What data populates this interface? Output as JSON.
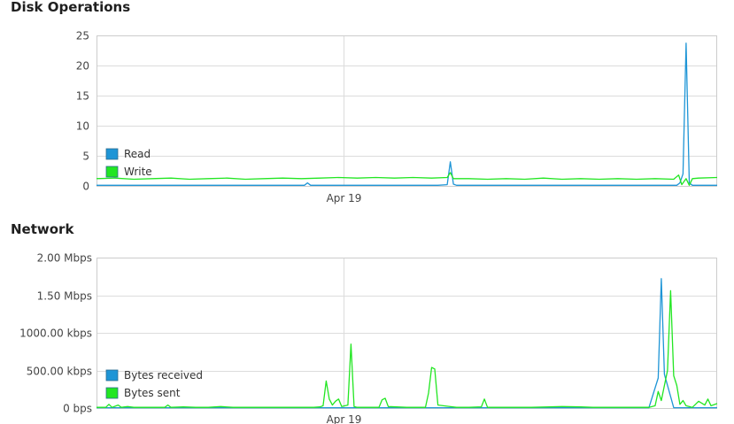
{
  "charts": [
    {
      "id": "disk",
      "panel_title": "Disk Operations",
      "chart_data": {
        "type": "line",
        "title": "Disk Operations",
        "xlabel": "",
        "ylabel": "",
        "x_range": [
          0,
          100
        ],
        "x_ticks": [
          {
            "x": 39.8,
            "label": "Apr 19"
          }
        ],
        "ylim": [
          0,
          25
        ],
        "y_ticks": [
          {
            "value": 0,
            "label": "0"
          },
          {
            "value": 5,
            "label": "5"
          },
          {
            "value": 10,
            "label": "10"
          },
          {
            "value": 15,
            "label": "15"
          },
          {
            "value": 20,
            "label": "20"
          },
          {
            "value": 25,
            "label": "25"
          }
        ],
        "grid": true,
        "legend_position": "bottom-left",
        "series": [
          {
            "name": "Read",
            "color": "#1e95d6",
            "x": [
              0,
              5,
              10,
              15,
              20,
              25,
              30,
              33.5,
              34,
              34.5,
              40,
              45,
              50,
              55,
              56.5,
              57,
              57.5,
              58,
              60,
              65,
              70,
              75,
              80,
              85,
              90,
              93.5,
              94,
              94.5,
              95,
              95.5,
              96,
              100
            ],
            "y": [
              0.1,
              0.1,
              0.1,
              0.1,
              0.1,
              0.1,
              0.1,
              0.1,
              0.5,
              0.1,
              0.1,
              0.1,
              0.1,
              0.1,
              0.2,
              4.0,
              0.3,
              0.1,
              0.1,
              0.1,
              0.1,
              0.1,
              0.1,
              0.1,
              0.1,
              0.1,
              0.5,
              2.0,
              23.7,
              0.5,
              0.1,
              0.1
            ]
          },
          {
            "name": "Write",
            "color": "#22e622",
            "x": [
              0,
              3,
              6,
              9,
              12,
              15,
              18,
              21,
              24,
              27,
              30,
              33,
              36,
              39,
              42,
              45,
              48,
              51,
              54,
              56.5,
              57,
              57.5,
              60,
              63,
              66,
              69,
              72,
              75,
              78,
              81,
              84,
              87,
              90,
              93,
              93.8,
              94.3,
              95,
              95.5,
              96,
              97,
              100
            ],
            "y": [
              1.2,
              1.3,
              1.1,
              1.2,
              1.3,
              1.1,
              1.2,
              1.3,
              1.1,
              1.2,
              1.3,
              1.2,
              1.3,
              1.4,
              1.3,
              1.4,
              1.3,
              1.4,
              1.3,
              1.4,
              2.2,
              1.2,
              1.2,
              1.1,
              1.2,
              1.1,
              1.3,
              1.1,
              1.2,
              1.1,
              1.2,
              1.1,
              1.2,
              1.1,
              1.8,
              0.2,
              1.2,
              0.1,
              1.2,
              1.3,
              1.4
            ]
          }
        ]
      }
    },
    {
      "id": "network",
      "panel_title": "Network",
      "chart_data": {
        "type": "line",
        "title": "Network",
        "xlabel": "",
        "ylabel": "",
        "x_range": [
          0,
          100
        ],
        "x_ticks": [
          {
            "x": 39.8,
            "label": "Apr 19"
          }
        ],
        "ylim": [
          0,
          2000
        ],
        "y_unit": "kbps",
        "y_ticks": [
          {
            "value": 0,
            "label": "0 bps"
          },
          {
            "value": 500,
            "label": "500.00 kbps"
          },
          {
            "value": 1000,
            "label": "1000.00 kbps"
          },
          {
            "value": 1500,
            "label": "1.50 Mbps"
          },
          {
            "value": 2000,
            "label": "2.00 Mbps"
          }
        ],
        "grid": true,
        "legend_position": "bottom-left",
        "series": [
          {
            "name": "Bytes received",
            "color": "#1e95d6",
            "x": [
              0,
              10,
              20,
              30,
              40,
              50,
              60,
              70,
              80,
              89,
              90.5,
              91,
              91.5,
              93,
              100
            ],
            "y": [
              5,
              5,
              5,
              5,
              5,
              5,
              5,
              5,
              5,
              5,
              400,
              1720,
              450,
              5,
              5
            ]
          },
          {
            "name": "Bytes sent",
            "color": "#22e622",
            "x": [
              0,
              1.5,
              2,
              2.5,
              3.5,
              4,
              5,
              6,
              8,
              10,
              11,
              11.5,
              12,
              14,
              16,
              18,
              20,
              22,
              25,
              27,
              29,
              31,
              33,
              35,
              36,
              36.5,
              37,
              37.5,
              38,
              38.5,
              39,
              39.5,
              40.5,
              41,
              41.5,
              42,
              42.5,
              44,
              45.5,
              46,
              46.5,
              47,
              50,
              52,
              53,
              53.5,
              54,
              54.5,
              55,
              58,
              60,
              62,
              62.5,
              63,
              66,
              70,
              73,
              75,
              78,
              80,
              82,
              85,
              88,
              89,
              90,
              90.5,
              91,
              91.5,
              92,
              92.5,
              93,
              93.5,
              94,
              94.5,
              95,
              96,
              97,
              98,
              98.5,
              99,
              100
            ],
            "y": [
              10,
              10,
              50,
              10,
              40,
              10,
              20,
              10,
              10,
              10,
              10,
              40,
              10,
              15,
              10,
              10,
              20,
              10,
              10,
              10,
              10,
              10,
              10,
              10,
              15,
              30,
              360,
              120,
              40,
              90,
              120,
              20,
              40,
              850,
              20,
              10,
              10,
              10,
              10,
              110,
              130,
              20,
              10,
              10,
              10,
              200,
              540,
              520,
              40,
              10,
              10,
              15,
              120,
              10,
              10,
              10,
              15,
              20,
              15,
              10,
              10,
              10,
              10,
              10,
              30,
              220,
              100,
              300,
              500,
              1560,
              430,
              300,
              50,
              100,
              30,
              10,
              90,
              40,
              120,
              30,
              60
            ]
          }
        ]
      }
    }
  ]
}
